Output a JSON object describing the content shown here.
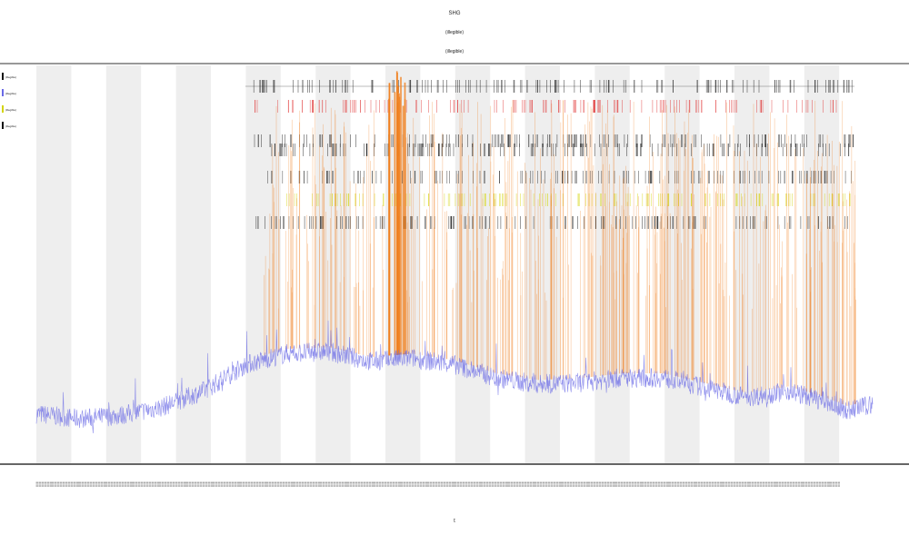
{
  "chart_data": {
    "type": "line",
    "title": "SHG",
    "subtitle_lines": [
      "(illegible)",
      "(illegible)"
    ],
    "xlabel": "t",
    "ylabel": "",
    "legend": {
      "placement": "left",
      "entries": [
        "(illegible)",
        "(illegible)",
        "(illegible)",
        "(illegible)"
      ]
    },
    "grid": false,
    "shaded_bands": true,
    "x_tick_labels": "dense rotated labels (illegible)",
    "series": [
      {
        "name": "",
        "color": "#6a6ae6",
        "kind": "continuous trace",
        "trend": [
          [
            0.0,
            0.08
          ],
          [
            0.05,
            0.05
          ],
          [
            0.1,
            0.07
          ],
          [
            0.15,
            0.12
          ],
          [
            0.2,
            0.22
          ],
          [
            0.25,
            0.38
          ],
          [
            0.3,
            0.45
          ],
          [
            0.35,
            0.46
          ],
          [
            0.4,
            0.4
          ],
          [
            0.45,
            0.42
          ],
          [
            0.5,
            0.38
          ],
          [
            0.55,
            0.3
          ],
          [
            0.6,
            0.26
          ],
          [
            0.65,
            0.27
          ],
          [
            0.7,
            0.3
          ],
          [
            0.75,
            0.3
          ],
          [
            0.8,
            0.24
          ],
          [
            0.85,
            0.18
          ],
          [
            0.9,
            0.22
          ],
          [
            0.94,
            0.16
          ],
          [
            0.97,
            0.1
          ],
          [
            1.0,
            0.14
          ]
        ]
      },
      {
        "name": "",
        "color": "#f08020",
        "kind": "vertical spikes",
        "x_start": 0.27,
        "x_end": 0.98,
        "peak_at": 0.43
      }
    ],
    "event_rows": [
      "#111111",
      "#e03030",
      "#111111",
      "#111111",
      "#222222",
      "#d4d40a",
      "#111111"
    ]
  }
}
